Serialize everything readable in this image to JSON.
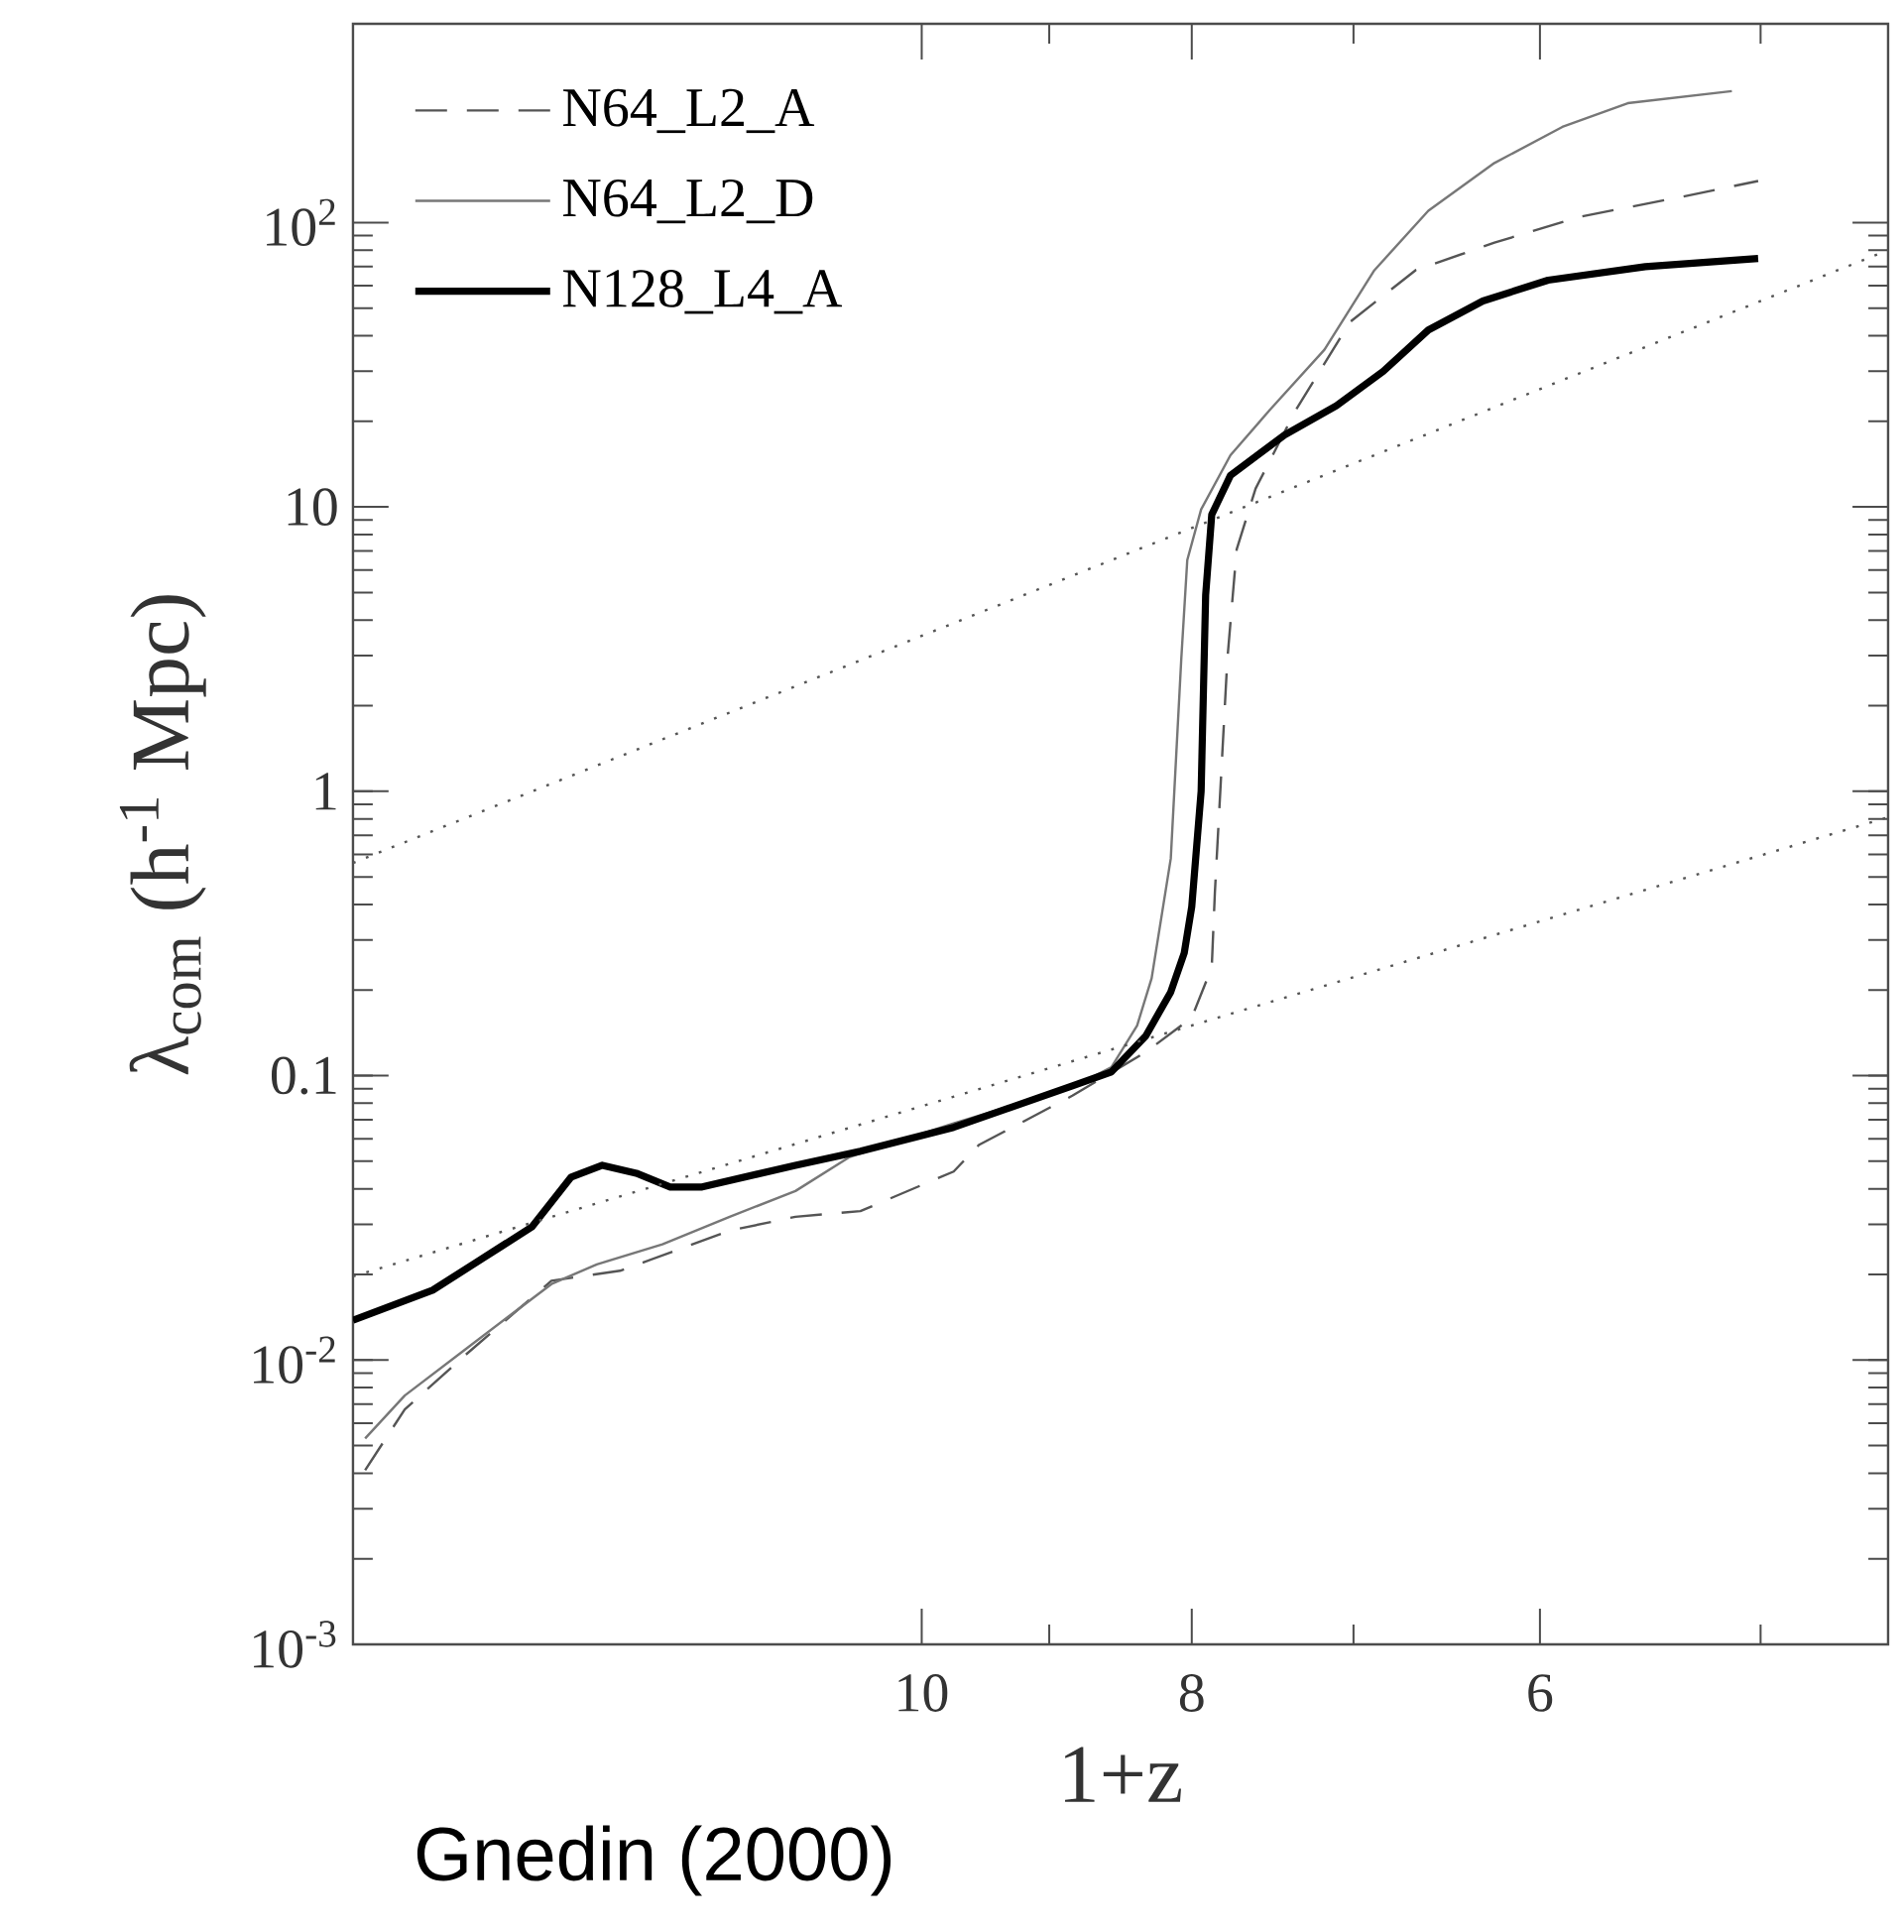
{
  "chart_data": {
    "type": "line",
    "xlabel": "1+z",
    "ylabel": "λ$_{com}$  (h$^{-1}$ Mpc)",
    "log": "xy",
    "xlim": [
      16,
      4.5
    ],
    "ylim": [
      0.001,
      500
    ],
    "xticks": [
      10,
      {
        "value": 9,
        "label": null
      },
      8,
      {
        "value": 7,
        "label": null
      },
      6,
      {
        "value": 5,
        "label": null
      }
    ],
    "yticks": [
      {
        "value": 0.001,
        "label": "10$^{-3}$"
      },
      {
        "value": 0.01,
        "label": "10$^{-2}$"
      },
      0.1,
      1,
      10,
      {
        "value": 100,
        "label": "10$^{2}$"
      }
    ],
    "legend": "top left",
    "marker": "none",
    "series": [
      {
        "name": "N64_L2_A",
        "color": "#555555",
        "line_style": "dashed",
        "x": [
          15.84,
          15.33,
          14.6,
          13.58,
          12.83,
          11.72,
          11.1,
          10.52,
          9.74,
          9.54,
          8.83,
          8.31,
          8.0,
          7.87,
          7.85,
          7.77,
          7.71,
          7.59,
          7.34,
          7.02,
          6.65,
          6.23,
          5.8,
          5.34,
          5.01
        ],
        "values": [
          0.0041,
          0.0067,
          0.0103,
          0.019,
          0.0206,
          0.0285,
          0.0319,
          0.0334,
          0.046,
          0.057,
          0.085,
          0.121,
          0.16,
          0.24,
          0.44,
          2.9,
          7.1,
          11.6,
          22,
          44.7,
          68,
          85,
          105,
          123,
          140
        ]
      },
      {
        "name": "N64_L2_D",
        "color": "#777777",
        "line_style": "solid",
        "x": [
          15.84,
          15.33,
          14.6,
          13.58,
          13.08,
          12.39,
          11.72,
          11.1,
          10.62,
          9.74,
          8.83,
          8.55,
          8.37,
          8.27,
          8.14,
          8.07,
          8.03,
          7.94,
          7.75,
          7.5,
          7.17,
          6.88,
          6.58,
          6.23,
          5.89,
          5.58,
          5.12
        ],
        "values": [
          0.0053,
          0.0075,
          0.0108,
          0.0185,
          0.0217,
          0.0255,
          0.0319,
          0.0393,
          0.0516,
          0.068,
          0.091,
          0.107,
          0.15,
          0.22,
          0.58,
          2.9,
          6.5,
          9.8,
          15.2,
          22,
          35.7,
          68,
          110,
          162,
          217,
          263,
          290
        ]
      },
      {
        "name": "N128_L4_A",
        "color": "#000000",
        "line_style": "solid",
        "x": [
          16.0,
          14.98,
          13.8,
          13.36,
          13.02,
          12.66,
          12.31,
          11.99,
          11.1,
          10.52,
          9.74,
          8.83,
          8.55,
          8.31,
          8.14,
          8.05,
          8.0,
          7.94,
          7.91,
          7.87,
          7.75,
          7.41,
          7.1,
          6.83,
          6.58,
          6.29,
          5.96,
          5.5,
          5.01
        ],
        "values": [
          0.0138,
          0.0176,
          0.0294,
          0.044,
          0.0484,
          0.0454,
          0.0406,
          0.0406,
          0.0484,
          0.0542,
          0.0658,
          0.092,
          0.103,
          0.138,
          0.197,
          0.27,
          0.393,
          1.0,
          4.9,
          9.4,
          12.9,
          17.9,
          22.7,
          30,
          41.9,
          53,
          62.7,
          70,
          74.8
        ]
      },
      {
        "color": "#555555",
        "line_style": "dotted",
        "x": [
          16,
          4.5
        ],
        "values": [
          0.56,
          80
        ]
      },
      {
        "color": "#555555",
        "line_style": "dotted",
        "x": [
          16,
          4.5
        ],
        "values": [
          0.0197,
          0.81
        ]
      }
    ],
    "annotations": [
      "Gnedin (2000)"
    ]
  }
}
